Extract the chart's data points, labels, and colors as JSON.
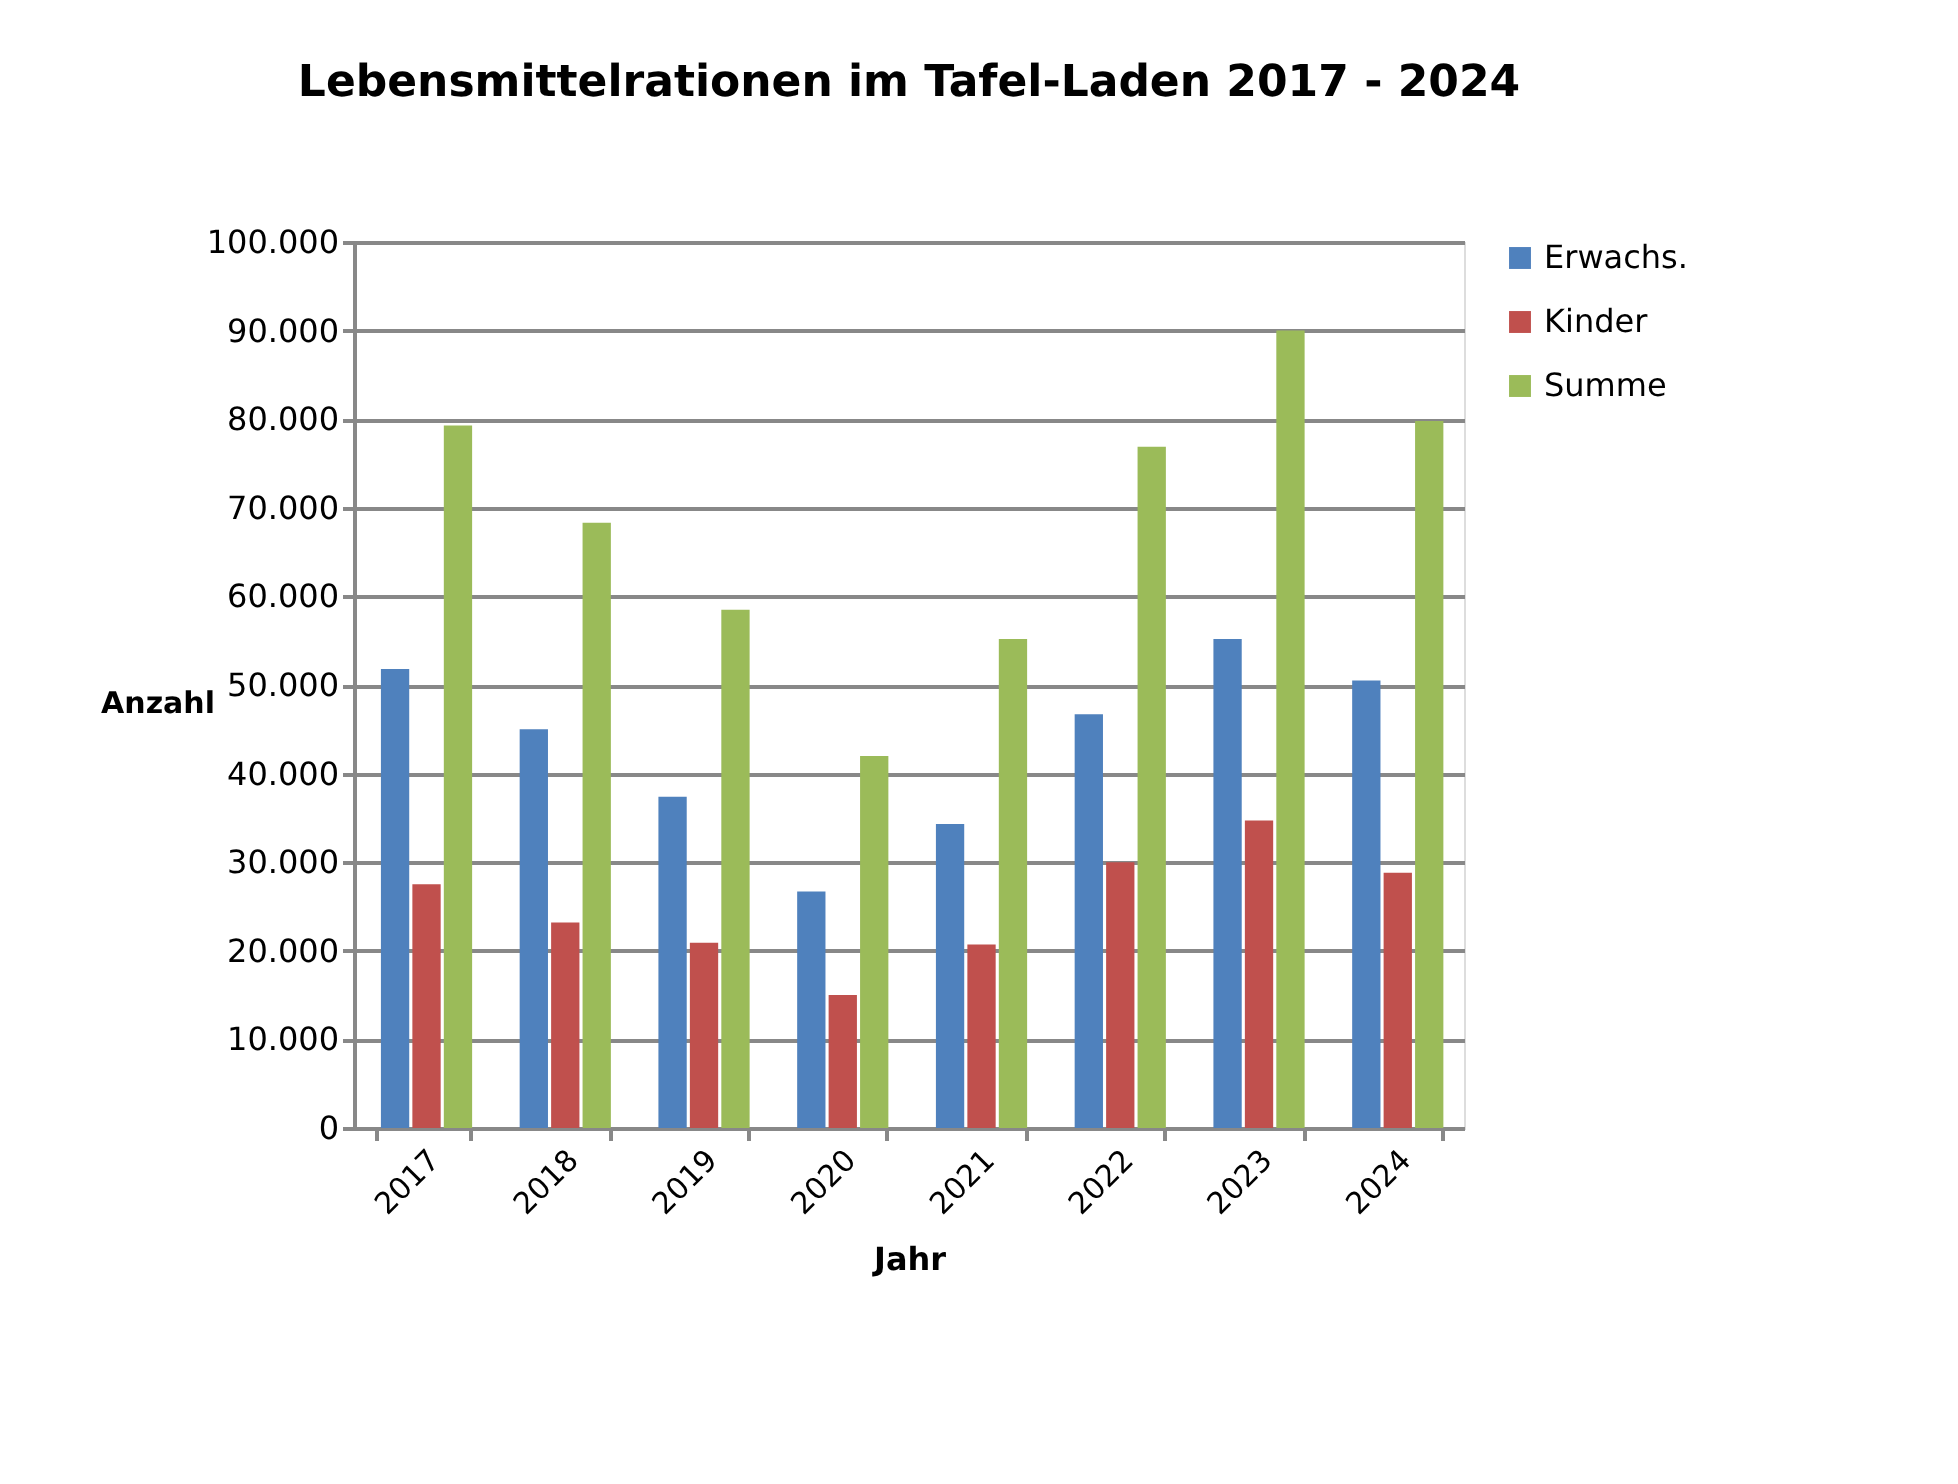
{
  "chart_data": {
    "type": "bar",
    "title": "Lebensmittelrationen im Tafel-Laden 2017 - 2024",
    "xlabel": "Jahr",
    "ylabel": "Anzahl",
    "categories": [
      "2017",
      "2018",
      "2019",
      "2020",
      "2021",
      "2022",
      "2023",
      "2024"
    ],
    "series": [
      {
        "name": "Erwachs.",
        "color": "#4f81bd",
        "values": [
          51800,
          45000,
          37400,
          26700,
          34300,
          46700,
          55200,
          50500
        ]
      },
      {
        "name": "Kinder",
        "color": "#c0504d",
        "values": [
          27500,
          23200,
          20900,
          15000,
          20700,
          30000,
          34700,
          28800
        ]
      },
      {
        "name": "Summe",
        "color": "#9bbb59",
        "values": [
          79300,
          68300,
          58500,
          42000,
          55200,
          76900,
          90000,
          79800
        ]
      }
    ],
    "ylim": [
      0,
      100000
    ],
    "yticks": [
      0,
      {
        "value": 10000,
        "label": "10.000"
      },
      {
        "value": 20000,
        "label": "20.000"
      },
      {
        "value": 30000,
        "label": "30.000"
      },
      {
        "value": 40000,
        "label": "40.000"
      },
      {
        "value": 50000,
        "label": "50.000"
      },
      {
        "value": 60000,
        "label": "60.000"
      },
      {
        "value": 70000,
        "label": "70.000"
      },
      {
        "value": 80000,
        "label": "80.000"
      },
      {
        "value": 90000,
        "label": "90.000"
      },
      {
        "value": 100000,
        "label": "100.000"
      }
    ],
    "grid": "y",
    "legend": "right"
  }
}
